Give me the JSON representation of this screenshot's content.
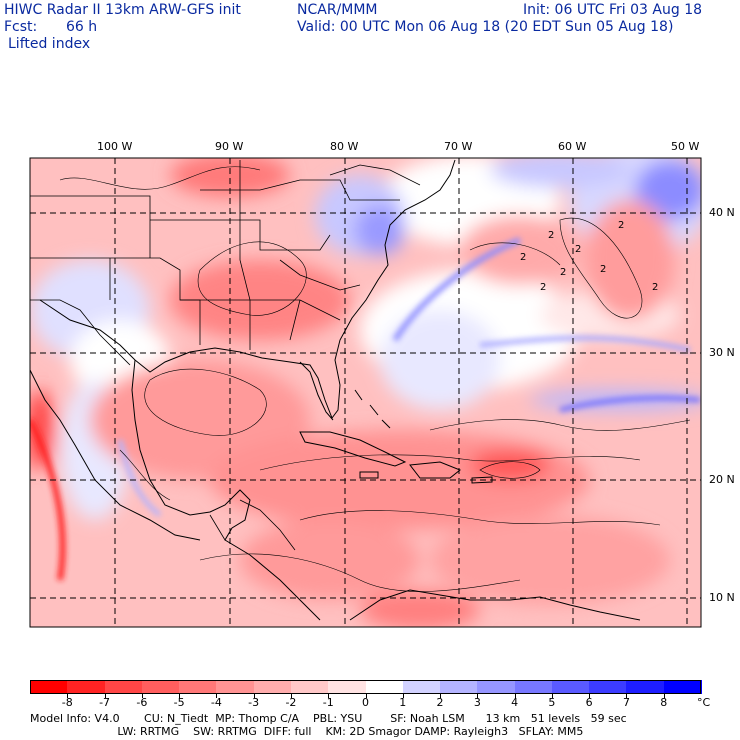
{
  "header": {
    "title": "HIWC Radar II 13km ARW-GFS init",
    "org": "NCAR/MMM",
    "init": "Init: 06 UTC Fri 03 Aug 18",
    "fcst_label": "Fcst:",
    "fcst_value": "66 h",
    "valid": "Valid: 00 UTC Mon 06 Aug 18 (20 EDT Sun 05 Aug 18)",
    "field": "Lifted index"
  },
  "map": {
    "lon_labels": [
      "100 W",
      "90 W",
      "80 W",
      "70 W",
      "60 W",
      "50 W"
    ],
    "lat_labels": [
      "40 N",
      "30 N",
      "20 N",
      "10 N"
    ],
    "contour_labels": [
      "2",
      "2",
      "2",
      "2",
      "2",
      "2",
      "2",
      "2"
    ]
  },
  "colorbar": {
    "labels": [
      "-8",
      "-7",
      "-6",
      "-5",
      "-4",
      "-3",
      "-2",
      "-1",
      "0",
      "1",
      "2",
      "3",
      "4",
      "5",
      "6",
      "7",
      "8"
    ],
    "unit": "°C",
    "colors": [
      "#ff0000",
      "#ff2323",
      "#ff4646",
      "#ff5e5e",
      "#ff7878",
      "#ff9393",
      "#ffadad",
      "#ffc8c8",
      "#ffe3e3",
      "#ffffff",
      "#d2d2ff",
      "#b4b4ff",
      "#9696ff",
      "#7878ff",
      "#5a5aff",
      "#3c3cff",
      "#1e1eff",
      "#0000ff"
    ]
  },
  "footer": {
    "line1": "Model Info: V4.0       CU: N_Tiedt  MP: Thomp C/A    PBL: YSU        SF: Noah LSM      13 km   51 levels   59 sec",
    "line2": "                         LW: RRTMG    SW: RRTMG  DIFF: full    KM: 2D Smagor DAMP: Rayleigh3   SFLAY: MM5"
  }
}
